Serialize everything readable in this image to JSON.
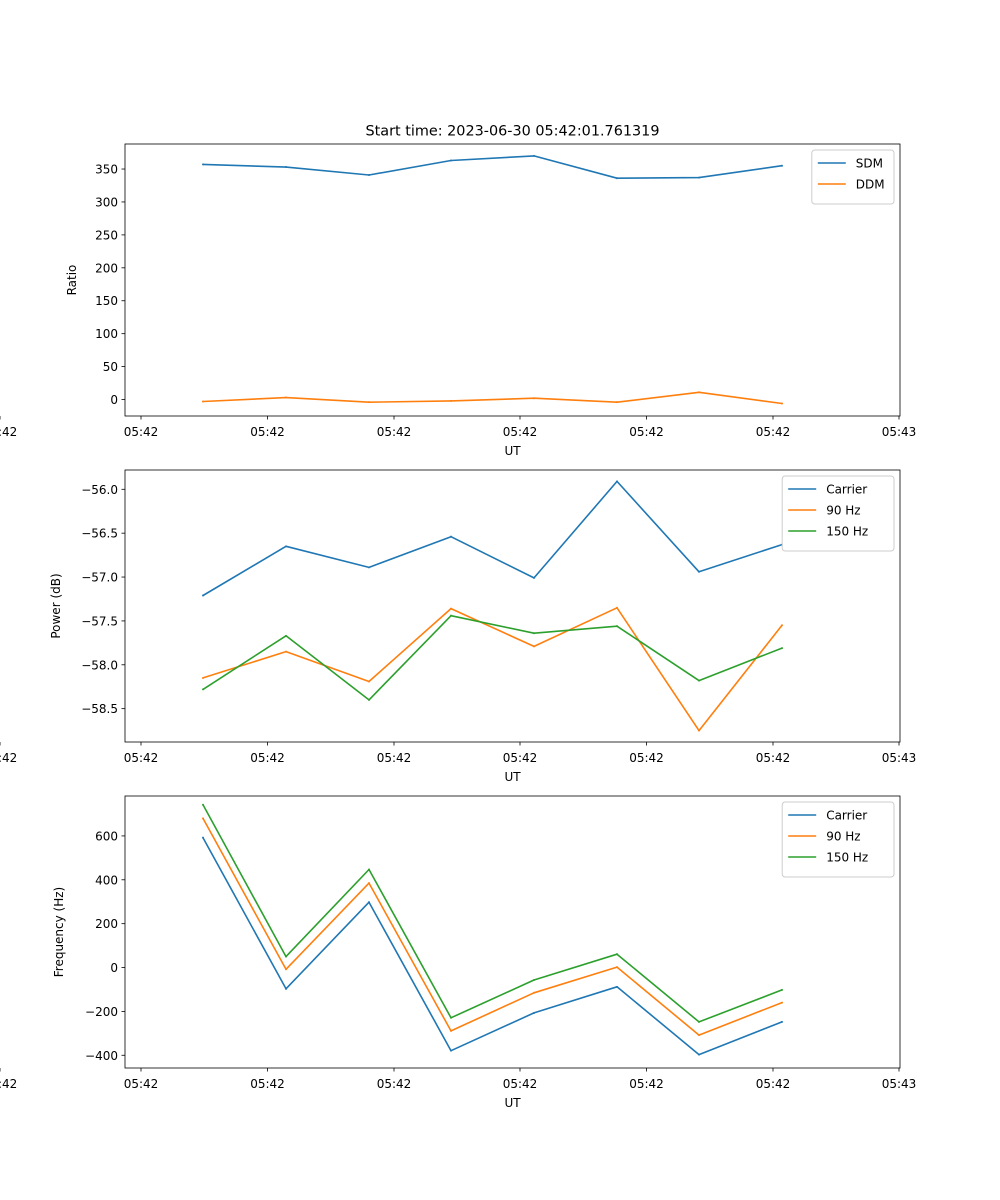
{
  "figure": {
    "title": "Start time: 2023-06-30 05:42:01.761319"
  },
  "chart_data": [
    {
      "type": "line",
      "xlabel": "UT",
      "ylabel": "Ratio",
      "x_tick_labels": [
        "05:42",
        "05:42",
        "05:42",
        "05:42",
        "05:42",
        "05:42",
        "05:42"
      ],
      "x_tick_end_label": "05:43",
      "y_ticks": [
        0,
        50,
        100,
        150,
        200,
        250,
        300,
        350
      ],
      "ylim": [
        -25,
        388
      ],
      "legend": "top-right",
      "grid": false,
      "series": [
        {
          "name": "SDM",
          "color": "#1f77b4",
          "values": [
            357,
            353,
            341,
            363,
            370,
            336,
            337,
            355
          ]
        },
        {
          "name": "DDM",
          "color": "#ff7f0e",
          "values": [
            -3,
            3,
            -4,
            -2,
            2,
            -4,
            11,
            -6
          ]
        }
      ]
    },
    {
      "type": "line",
      "xlabel": "UT",
      "ylabel": "Power (dB)",
      "x_tick_labels": [
        "05:42",
        "05:42",
        "05:42",
        "05:42",
        "05:42",
        "05:42",
        "05:42"
      ],
      "x_tick_end_label": "05:43",
      "y_ticks": [
        -58.5,
        -58.0,
        -57.5,
        -57.0,
        -56.5,
        -56.0
      ],
      "y_tick_labels": [
        "−58.5",
        "−58.0",
        "−57.5",
        "−57.0",
        "−56.5",
        "−56.0"
      ],
      "ylim": [
        -58.88,
        -55.78
      ],
      "legend": "top-right",
      "grid": false,
      "series": [
        {
          "name": "Carrier",
          "color": "#1f77b4",
          "values": [
            -57.21,
            -56.65,
            -56.89,
            -56.54,
            -57.01,
            -55.91,
            -56.94,
            -56.63
          ]
        },
        {
          "name": "90 Hz",
          "color": "#ff7f0e",
          "values": [
            -58.15,
            -57.85,
            -58.19,
            -57.36,
            -57.79,
            -57.35,
            -58.75,
            -57.55
          ]
        },
        {
          "name": "150 Hz",
          "color": "#2ca02c",
          "values": [
            -58.28,
            -57.67,
            -58.4,
            -57.44,
            -57.64,
            -57.56,
            -58.18,
            -57.81
          ]
        }
      ]
    },
    {
      "type": "line",
      "xlabel": "UT",
      "ylabel": "Frequency (Hz)",
      "x_tick_labels": [
        "05:42",
        "05:42",
        "05:42",
        "05:42",
        "05:42",
        "05:42",
        "05:42"
      ],
      "x_tick_end_label": "05:43",
      "y_ticks": [
        -400,
        -200,
        0,
        200,
        400,
        600
      ],
      "y_tick_labels": [
        "−400",
        "−200",
        "0",
        "200",
        "400",
        "600"
      ],
      "ylim": [
        -458,
        782
      ],
      "legend": "top-right",
      "grid": false,
      "series": [
        {
          "name": "Carrier",
          "color": "#1f77b4",
          "values": [
            592,
            -97,
            298,
            -379,
            -207,
            -88,
            -397,
            -248
          ]
        },
        {
          "name": "90 Hz",
          "color": "#ff7f0e",
          "values": [
            680,
            -8,
            385,
            -289,
            -115,
            2,
            -308,
            -160
          ]
        },
        {
          "name": "150 Hz",
          "color": "#2ca02c",
          "values": [
            742,
            50,
            447,
            -229,
            -57,
            61,
            -248,
            -102
          ]
        }
      ]
    }
  ]
}
